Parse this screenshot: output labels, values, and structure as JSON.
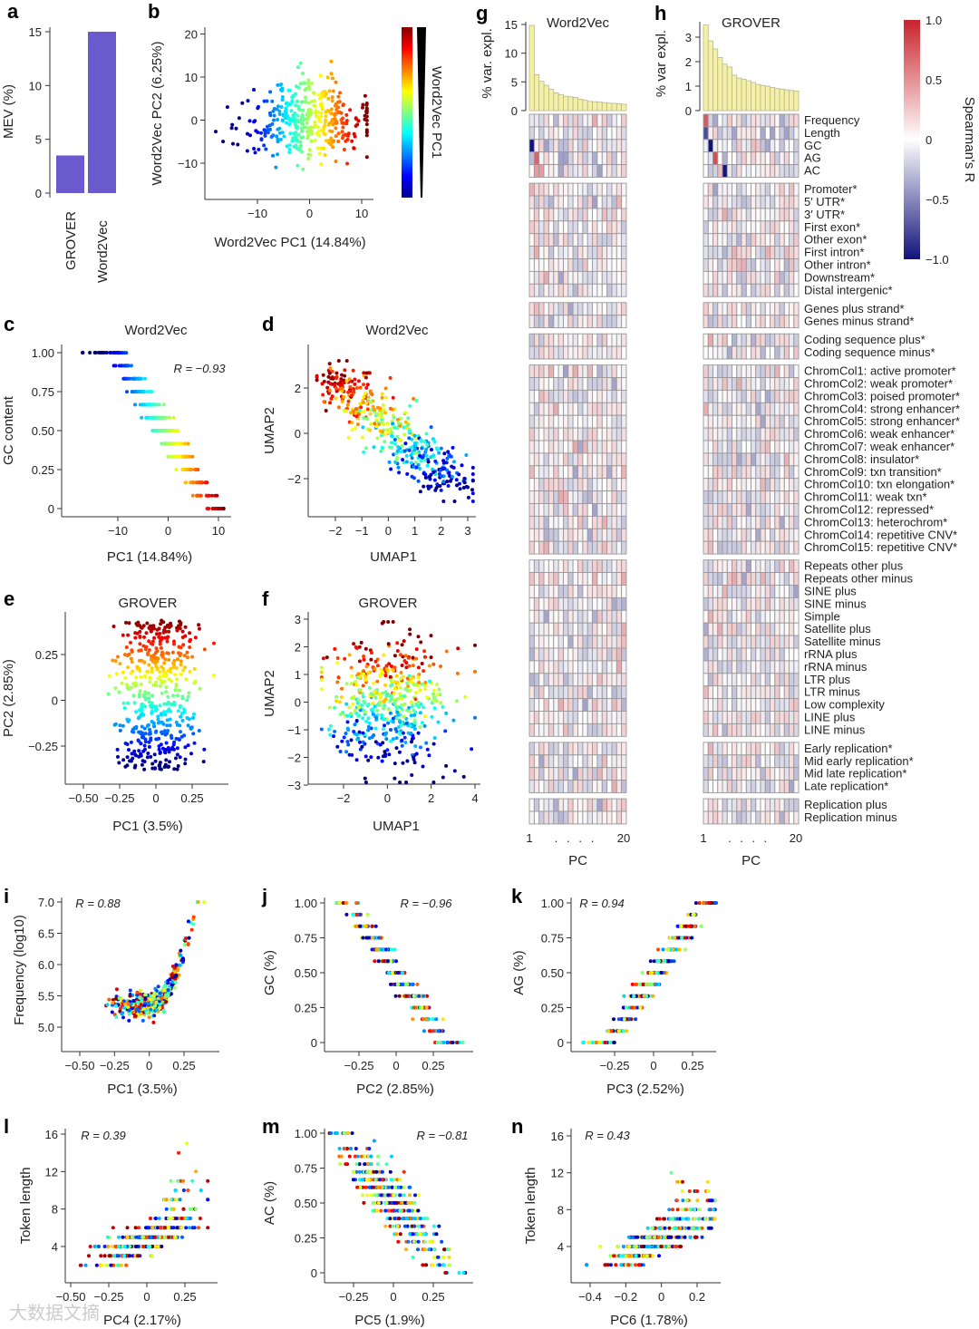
{
  "watermark": "大数据文摘",
  "chart_data": [
    {
      "panel": "a",
      "type": "bar",
      "categories": [
        "GROVER",
        "Word2Vec"
      ],
      "values": [
        3.5,
        15.0
      ],
      "ylabel": "MEV (%)",
      "ylim": [
        0,
        15
      ],
      "yticks": [
        0,
        5,
        10,
        15
      ],
      "color": "#6a5acd"
    },
    {
      "panel": "b",
      "type": "scatter",
      "xlabel": "Word2Vec PC1 (14.84%)",
      "ylabel": "Word2Vec PC2 (6.25%)",
      "xticks": [
        -10,
        0,
        10
      ],
      "yticks": [
        20,
        10,
        0,
        -10
      ],
      "xlim": [
        -19,
        12
      ],
      "ylim": [
        -18,
        21
      ],
      "color_by": "Word2Vec PC1",
      "colorbar_label": "Word2Vec PC1",
      "colormap": "jet",
      "n_points": 400
    },
    {
      "panel": "c",
      "type": "scatter",
      "title": "Word2Vec",
      "xlabel": "PC1 (14.84%)",
      "ylabel": "GC content",
      "xticks": [
        -10,
        0,
        10
      ],
      "yticks": [
        0,
        0.25,
        0.5,
        0.75,
        1.0
      ],
      "ytick_labels": [
        "0",
        "0.25",
        "0.50",
        "0.75",
        "1.00"
      ],
      "annotation": "R = −0.93",
      "R": -0.93,
      "xlim": [
        -18,
        12
      ],
      "ylim": [
        0,
        1
      ],
      "n_points": 400
    },
    {
      "panel": "d",
      "type": "scatter",
      "title": "Word2Vec",
      "xlabel": "UMAP1",
      "ylabel": "UMAP2",
      "xticks": [
        -2,
        -1,
        0,
        1,
        2,
        3
      ],
      "yticks": [
        2,
        0,
        -2
      ],
      "n_points": 450
    },
    {
      "panel": "e",
      "type": "scatter",
      "title": "GROVER",
      "xlabel": "PC1 (3.5%)",
      "ylabel": "PC2 (2.85%)",
      "xticks": [
        -0.5,
        -0.25,
        0,
        0.25
      ],
      "xtick_labels": [
        "−0.50",
        "−0.25",
        "0",
        "0.25"
      ],
      "yticks": [
        0.25,
        0,
        -0.25
      ],
      "ytick_labels": [
        "0.25",
        "0",
        "−0.25"
      ],
      "n_points": 500
    },
    {
      "panel": "f",
      "type": "scatter",
      "title": "GROVER",
      "xlabel": "UMAP1",
      "ylabel": "UMAP2",
      "xticks": [
        -2,
        0,
        2,
        4
      ],
      "yticks": [
        3,
        2,
        1,
        0,
        -1,
        -2,
        -3
      ],
      "n_points": 500
    },
    {
      "panel": "g",
      "type": "bar",
      "title": "Word2Vec",
      "ylabel": "% var. expl.",
      "yticks": [
        0,
        5,
        10,
        15
      ],
      "ylim": [
        0,
        15
      ],
      "xlabel": "PC",
      "xtick_labels": [
        "1",
        ".",
        ".",
        ".",
        ".",
        "20"
      ],
      "values": [
        14.84,
        6.25,
        5.1,
        4.4,
        3.7,
        3.1,
        2.8,
        2.5,
        2.4,
        2.3,
        2.0,
        1.8,
        1.6,
        1.55,
        1.5,
        1.4,
        1.3,
        1.25,
        1.2,
        1.1
      ],
      "color": "#f4f1a6",
      "heatmap_highlights": [
        {
          "row": "GC",
          "pc": 1,
          "value": -1.0
        },
        {
          "row": "AG",
          "pc": 2,
          "value": 0.7
        },
        {
          "row": "AC",
          "pc": 2,
          "value": 0.45
        },
        {
          "row": "AC",
          "pc": 3,
          "value": 0.45
        },
        {
          "row": "GC",
          "pc": 4,
          "value": -0.4
        },
        {
          "row": "AG",
          "pc": 7,
          "value": -0.4
        },
        {
          "row": "AG",
          "pc": 8,
          "value": -0.4
        }
      ]
    },
    {
      "panel": "h",
      "type": "bar",
      "title": "GROVER",
      "ylabel": "% var expl.",
      "yticks": [
        0,
        1,
        2,
        3
      ],
      "ylim": [
        0,
        3.6
      ],
      "xlabel": "PC",
      "xtick_labels": [
        "1",
        ".",
        ".",
        ".",
        ".",
        "20"
      ],
      "values": [
        3.5,
        2.85,
        2.52,
        2.17,
        1.9,
        1.78,
        1.45,
        1.33,
        1.28,
        1.22,
        1.15,
        1.07,
        1.03,
        1.0,
        0.95,
        0.9,
        0.88,
        0.85,
        0.82,
        0.8
      ],
      "color": "#f4f1a6",
      "heatmap_highlights": [
        {
          "row": "Frequency",
          "pc": 1,
          "value": 0.75
        },
        {
          "row": "Length",
          "pc": 1,
          "value": -0.75
        },
        {
          "row": "GC",
          "pc": 2,
          "value": -1.0
        },
        {
          "row": "AG",
          "pc": 3,
          "value": 0.8
        },
        {
          "row": "AC",
          "pc": 5,
          "value": -1.0
        }
      ]
    },
    {
      "panel": "gh",
      "type": "heatmap",
      "colorbar_label": "Spearman's R",
      "colorbar_ticks": [
        1.0,
        0.5,
        0,
        -0.5,
        -1.0
      ],
      "colorbar_tick_labels": [
        "1.0",
        "0.5",
        "0",
        "−0.5",
        "−1.0"
      ],
      "row_groups": [
        [
          "Frequency",
          "Length",
          "GC",
          "AG",
          "AC"
        ],
        [
          "Promoter*",
          "5′ UTR*",
          "3′ UTR*",
          "First exon*",
          "Other exon*",
          "First intron*",
          "Other intron*",
          "Downstream*",
          "Distal intergenic*"
        ],
        [
          "Genes plus strand*",
          "Genes minus strand*"
        ],
        [
          "Coding sequence plus*",
          "Coding sequence minus*"
        ],
        [
          "ChromCol1: active promoter*",
          "ChromCol2: weak promoter*",
          "ChromCol3: poised promoter*",
          "ChromCol4: strong enhancer*",
          "ChromCol5: strong enhancer*",
          "ChromCol6: weak enhancer*",
          "ChromCol7: weak enhancer*",
          "ChromCol8: insulator*",
          "ChromCol9: txn transition*",
          "ChromCol10: txn elongation*",
          "ChromCol11: weak txn*",
          "ChromCol12: repressed*",
          "ChromCol13: heterochrom*",
          "ChromCol14: repetitive CNV*",
          "ChromCol15: repetitive CNV*"
        ],
        [
          "Repeats other plus",
          "Repeats other minus",
          "SINE plus",
          "SINE minus",
          "Simple",
          "Satellite plus",
          "Satellite minus",
          "rRNA plus",
          "rRNA minus",
          "LTR plus",
          "LTR minus",
          "Low complexity",
          "LINE plus",
          "LINE minus"
        ],
        [
          "Early replication*",
          "Mid early replication*",
          "Mid late replication*",
          "Late replication*"
        ],
        [
          "Replication plus",
          "Replication minus"
        ]
      ]
    },
    {
      "panel": "i",
      "type": "scatter",
      "xlabel": "PC1 (3.5%)",
      "ylabel": "Frequency (log10)",
      "annotation": "R = 0.88",
      "R": 0.88,
      "xticks": [
        -0.5,
        -0.25,
        0,
        0.25
      ],
      "xtick_labels": [
        "−0.50",
        "−0.25",
        "0",
        "0.25"
      ],
      "yticks": [
        5.0,
        5.5,
        6.0,
        6.5,
        7.0
      ],
      "ytick_labels": [
        "5.0",
        "5.5",
        "6.0",
        "6.5",
        "7.0"
      ],
      "n_points": 450
    },
    {
      "panel": "j",
      "type": "scatter",
      "xlabel": "PC2 (2.85%)",
      "ylabel": "GC (%)",
      "annotation": "R = −0.96",
      "R": -0.96,
      "xticks": [
        -0.25,
        0,
        0.25
      ],
      "xtick_labels": [
        "−0.25",
        "0",
        "0.25"
      ],
      "yticks": [
        0,
        0.25,
        0.5,
        0.75,
        1.0
      ],
      "ytick_labels": [
        "0",
        "0.25",
        "0.50",
        "0.75",
        "1.00"
      ],
      "n_points": 420
    },
    {
      "panel": "k",
      "type": "scatter",
      "xlabel": "PC3 (2.52%)",
      "ylabel": "AG (%)",
      "annotation": "R = 0.94",
      "R": 0.94,
      "xticks": [
        -0.25,
        0,
        0.25
      ],
      "xtick_labels": [
        "−0.25",
        "0",
        "0.25"
      ],
      "yticks": [
        0,
        0.25,
        0.5,
        0.75,
        1.0
      ],
      "ytick_labels": [
        "0",
        "0.25",
        "0.50",
        "0.75",
        "1.00"
      ],
      "n_points": 420
    },
    {
      "panel": "l",
      "type": "scatter",
      "xlabel": "PC4 (2.17%)",
      "ylabel": "Token length",
      "annotation": "R = 0.39",
      "R": 0.39,
      "xticks": [
        -0.5,
        -0.25,
        0,
        0.25
      ],
      "xtick_labels": [
        "−0.50",
        "−0.25",
        "0",
        "0.25"
      ],
      "yticks": [
        4,
        8,
        12,
        16
      ],
      "ytick_labels": [
        "4",
        "8",
        "12",
        "16"
      ],
      "n_points": 420
    },
    {
      "panel": "m",
      "type": "scatter",
      "xlabel": "PC5 (1.9%)",
      "ylabel": "AC (%)",
      "annotation": "R = −0.81",
      "R": -0.81,
      "xticks": [
        -0.25,
        0,
        0.25
      ],
      "xtick_labels": [
        "−0.25",
        "0",
        "0.25"
      ],
      "yticks": [
        0,
        0.25,
        0.5,
        0.75,
        1.0
      ],
      "ytick_labels": [
        "0",
        "0.25",
        "0.50",
        "0.75",
        "1.00"
      ],
      "n_points": 420
    },
    {
      "panel": "n",
      "type": "scatter",
      "xlabel": "PC6 (1.78%)",
      "ylabel": "Token length",
      "annotation": "R = 0.43",
      "R": 0.43,
      "xticks": [
        -0.4,
        -0.2,
        0,
        0.2
      ],
      "xtick_labels": [
        "−0.4",
        "−0.2",
        "0",
        "0.2"
      ],
      "yticks": [
        4,
        8,
        12,
        16
      ],
      "ytick_labels": [
        "4",
        "8",
        "12",
        "16"
      ],
      "n_points": 420
    }
  ]
}
